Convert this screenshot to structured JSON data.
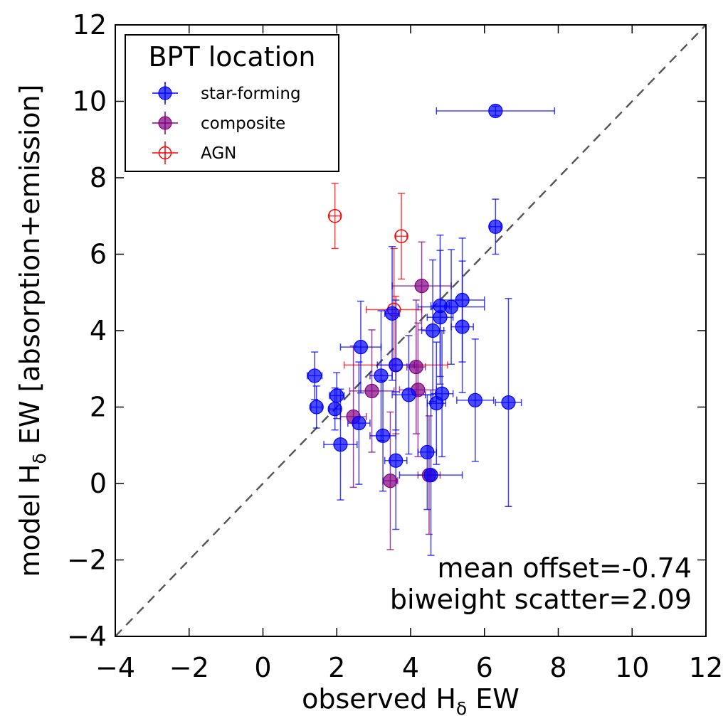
{
  "chart_data": {
    "type": "scatter",
    "xlabel_main": "observed H",
    "xlabel_sub": "δ",
    "xlabel_tail": " EW",
    "ylabel_main": "model H",
    "ylabel_sub": "δ",
    "ylabel_tail": " EW [absorption+emission]",
    "xlim": [
      -4,
      12
    ],
    "ylim": [
      -4,
      12
    ],
    "xticks": [
      -4,
      -2,
      0,
      2,
      4,
      6,
      8,
      10,
      12
    ],
    "yticks": [
      -4,
      -2,
      0,
      2,
      4,
      6,
      8,
      10,
      12
    ],
    "xtick_labels": [
      "−4",
      "−2",
      "0",
      "2",
      "4",
      "6",
      "8",
      "10",
      "12"
    ],
    "ytick_labels": [
      "−4",
      "−2",
      "0",
      "2",
      "4",
      "6",
      "8",
      "10",
      "12"
    ],
    "grid": false,
    "one_to_one_line": true,
    "legend": {
      "title": "BPT location",
      "placement": "top-left",
      "entries": [
        "star-forming",
        "composite",
        "AGN"
      ]
    },
    "annotations": [
      "mean offset=-0.74",
      "biweight scatter=2.09"
    ],
    "series": [
      {
        "name": "star-forming",
        "color": "#0000ff",
        "filled": true,
        "points": [
          {
            "x": 6.3,
            "y": 9.75,
            "xerr": 1.6,
            "yerr": 0.12
          },
          {
            "x": 6.3,
            "y": 6.72,
            "xerr": 0.15,
            "yerr": 0.72
          },
          {
            "x": 1.4,
            "y": 2.82,
            "xerr": 0.2,
            "yerr": 0.62
          },
          {
            "x": 1.45,
            "y": 2.0,
            "xerr": 0.15,
            "yerr": 0.55
          },
          {
            "x": 1.95,
            "y": 1.95,
            "xerr": 0.15,
            "yerr": 0.55
          },
          {
            "x": 2.0,
            "y": 2.3,
            "xerr": 0.2,
            "yerr": 0.6
          },
          {
            "x": 2.1,
            "y": 1.02,
            "xerr": 0.45,
            "yerr": 1.45
          },
          {
            "x": 2.65,
            "y": 3.57,
            "xerr": 0.55,
            "yerr": 1.2
          },
          {
            "x": 2.6,
            "y": 1.58,
            "xerr": 0.3,
            "yerr": 1.6
          },
          {
            "x": 3.2,
            "y": 2.82,
            "xerr": 0.3,
            "yerr": 1.7
          },
          {
            "x": 3.25,
            "y": 1.25,
            "xerr": 0.35,
            "yerr": 1.45
          },
          {
            "x": 3.5,
            "y": 4.45,
            "xerr": 0.2,
            "yerr": 1.75
          },
          {
            "x": 3.6,
            "y": 3.1,
            "xerr": 0.5,
            "yerr": 1.7
          },
          {
            "x": 3.6,
            "y": 0.6,
            "xerr": 0.3,
            "yerr": 1.8
          },
          {
            "x": 3.95,
            "y": 2.32,
            "xerr": 0.45,
            "yerr": 1.55
          },
          {
            "x": 4.45,
            "y": 0.82,
            "xerr": 0.25,
            "yerr": 1.5
          },
          {
            "x": 4.55,
            "y": 0.22,
            "xerr": 0.85,
            "yerr": 2.1
          },
          {
            "x": 4.6,
            "y": 4.0,
            "xerr": 0.3,
            "yerr": 1.85
          },
          {
            "x": 4.7,
            "y": 2.1,
            "xerr": 0.25,
            "yerr": 1.6
          },
          {
            "x": 4.8,
            "y": 4.65,
            "xerr": 0.25,
            "yerr": 1.85
          },
          {
            "x": 4.8,
            "y": 4.35,
            "xerr": 0.35,
            "yerr": 1.75
          },
          {
            "x": 4.85,
            "y": 2.35,
            "xerr": 0.3,
            "yerr": 1.65
          },
          {
            "x": 5.1,
            "y": 4.62,
            "xerr": 0.9,
            "yerr": 1.5
          },
          {
            "x": 5.4,
            "y": 4.8,
            "xerr": 0.6,
            "yerr": 1.62
          },
          {
            "x": 5.4,
            "y": 4.1,
            "xerr": 0.3,
            "yerr": 1.72
          },
          {
            "x": 5.75,
            "y": 2.18,
            "xerr": 0.5,
            "yerr": 1.6
          },
          {
            "x": 6.65,
            "y": 2.12,
            "xerr": 0.35,
            "yerr": 2.72
          }
        ]
      },
      {
        "name": "composite",
        "color": "#800080",
        "filled": true,
        "points": [
          {
            "x": 4.3,
            "y": 5.17,
            "xerr": 0.8,
            "yerr": 1.15
          },
          {
            "x": 2.45,
            "y": 1.75,
            "xerr": 0.35,
            "yerr": 1.85
          },
          {
            "x": 2.95,
            "y": 2.42,
            "xerr": 0.6,
            "yerr": 1.6
          },
          {
            "x": 3.45,
            "y": 0.07,
            "xerr": 0.2,
            "yerr": 1.8
          },
          {
            "x": 4.15,
            "y": 3.05,
            "xerr": 0.25,
            "yerr": 1.75
          },
          {
            "x": 4.2,
            "y": 2.45,
            "xerr": 0.5,
            "yerr": 1.75
          },
          {
            "x": 4.5,
            "y": 0.22,
            "xerr": 0.3,
            "yerr": 1.55
          }
        ]
      },
      {
        "name": "AGN",
        "color": "#ff0000",
        "filled": false,
        "points": [
          {
            "x": 1.95,
            "y": 7.0,
            "xerr": 0.15,
            "yerr": 0.85
          },
          {
            "x": 3.75,
            "y": 6.47,
            "xerr": 0.15,
            "yerr": 1.12
          },
          {
            "x": 3.55,
            "y": 4.55,
            "xerr": 0.75,
            "yerr": 1.6
          },
          {
            "x": 3.6,
            "y": 3.1,
            "xerr": 1.4,
            "yerr": 1.8
          }
        ]
      }
    ]
  }
}
